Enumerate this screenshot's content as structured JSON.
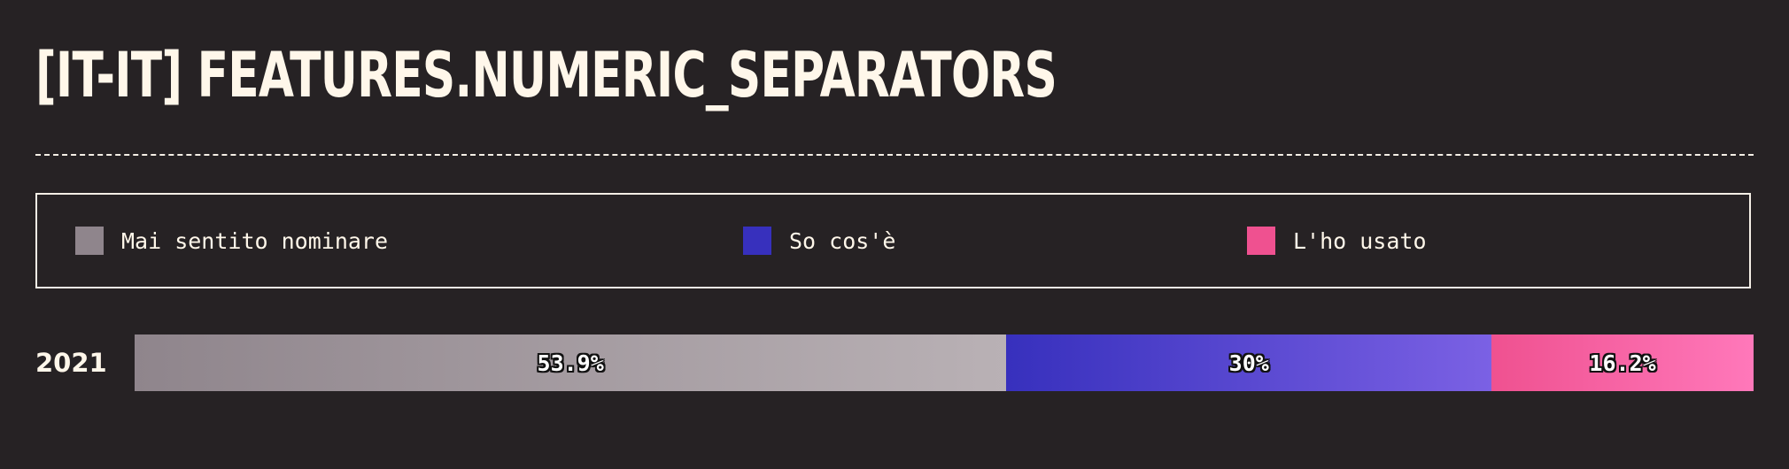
{
  "chart_data": {
    "type": "bar",
    "orientation": "horizontal",
    "stacked": true,
    "normalized": true,
    "title": "[IT-IT] FEATURES.NUMERIC_SEPARATORS",
    "categories": [
      "2021"
    ],
    "series": [
      {
        "name": "Mai sentito nominare",
        "values": [
          53.9
        ],
        "value_labels": [
          "53.9%"
        ],
        "color": "#8f858c",
        "color_end": "#b9b1b5"
      },
      {
        "name": "So cos'è",
        "values": [
          30
        ],
        "value_labels": [
          "30%"
        ],
        "color": "#3730bd",
        "color_end": "#7b61e4"
      },
      {
        "name": "L'ho usato",
        "values": [
          16.2
        ],
        "value_labels": [
          "16.2%"
        ],
        "color": "#ef5190",
        "color_end": "#ff78ba"
      }
    ],
    "legend_position": "top",
    "grid": false
  },
  "colors": {
    "background": "#262224",
    "text": "#fff7ea",
    "border": "#f5efe6"
  }
}
